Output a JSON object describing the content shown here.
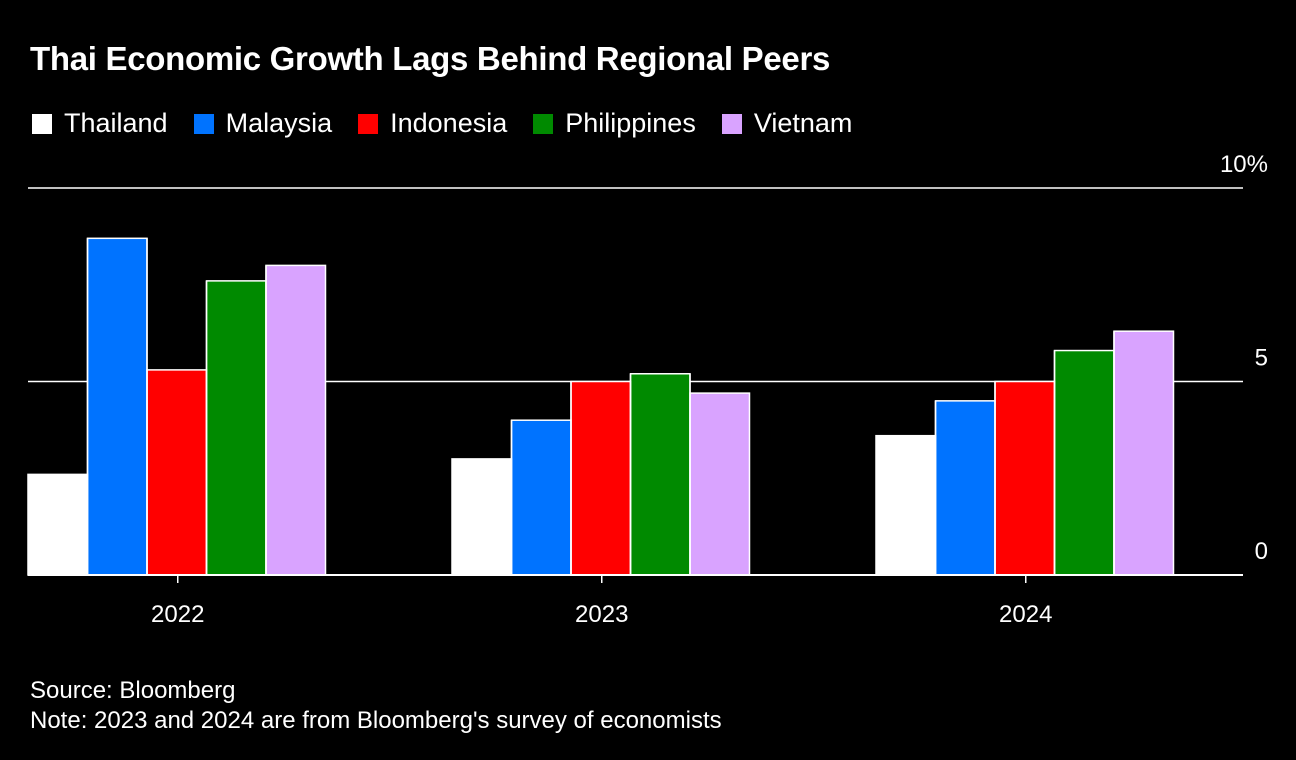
{
  "chart_data": {
    "type": "bar",
    "title": "Thai Economic Growth Lags Behind Regional Peers",
    "categories": [
      "2022",
      "2023",
      "2024"
    ],
    "series": [
      {
        "name": "Thailand",
        "color": "#ffffff",
        "values": [
          2.6,
          3.0,
          3.6
        ]
      },
      {
        "name": "Malaysia",
        "color": "#0073ff",
        "values": [
          8.7,
          4.0,
          4.5
        ]
      },
      {
        "name": "Indonesia",
        "color": "#ff0000",
        "values": [
          5.3,
          5.0,
          5.0
        ]
      },
      {
        "name": "Philippines",
        "color": "#008a00",
        "values": [
          7.6,
          5.2,
          5.8
        ]
      },
      {
        "name": "Vietnam",
        "color": "#d9a3ff",
        "values": [
          8.0,
          4.7,
          6.3
        ]
      }
    ],
    "ylim": [
      0,
      10
    ],
    "yticks": [
      0,
      5,
      10
    ],
    "ytick_labels": [
      "0",
      "5",
      "10%"
    ],
    "xlabel": "",
    "ylabel": "",
    "grid": true,
    "legend_position": "top-left"
  },
  "footer": {
    "source": "Source: Bloomberg",
    "note": "Note: 2023 and 2024 are from Bloomberg's survey of economists"
  }
}
